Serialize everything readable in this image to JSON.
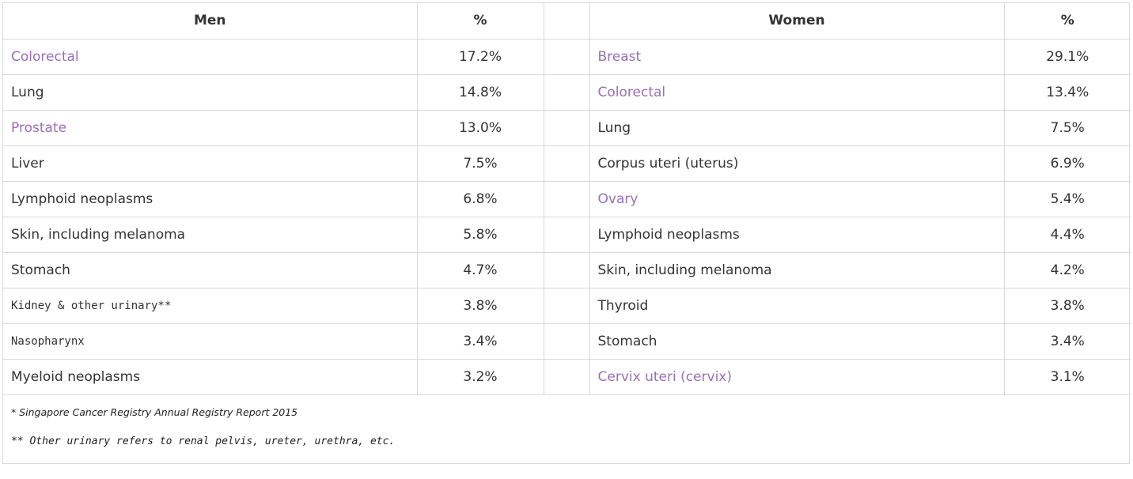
{
  "headers": {
    "men": "Men",
    "men_pct": "%",
    "women": "Women",
    "women_pct": "%"
  },
  "rows": [
    {
      "men": "Colorectal",
      "men_pct": "17.2%",
      "women": "Breast",
      "women_pct": "29.1%"
    },
    {
      "men": "Lung",
      "men_pct": "14.8%",
      "women": "Colorectal",
      "women_pct": "13.4%"
    },
    {
      "men": "Prostate",
      "men_pct": "13.0%",
      "women": "Lung",
      "women_pct": "7.5%"
    },
    {
      "men": "Liver",
      "men_pct": "7.5%",
      "women": "Corpus uteri (uterus)",
      "women_pct": "6.9%"
    },
    {
      "men": "Lymphoid neoplasms",
      "men_pct": "6.8%",
      "women": "Ovary",
      "women_pct": "5.4%"
    },
    {
      "men": "Skin, including melanoma",
      "men_pct": "5.8%",
      "women": "Lymphoid neoplasms",
      "women_pct": "4.4%"
    },
    {
      "men": "Stomach",
      "men_pct": "4.7%",
      "women": "Skin, including melanoma",
      "women_pct": "4.2%"
    },
    {
      "men": "Kidney & other urinary**",
      "men_pct": "3.8%",
      "women": "Thyroid",
      "women_pct": "3.8%"
    },
    {
      "men": "Nasopharynx",
      "men_pct": "3.4%",
      "women": "Stomach",
      "women_pct": "3.4%"
    },
    {
      "men": "Myeloid neoplasms",
      "men_pct": "3.2%",
      "women": "Cervix uteri (cervix)",
      "women_pct": "3.1%"
    }
  ],
  "footnotes": {
    "source": "* Singapore Cancer Registry Annual Registry Report 2015",
    "urinary": "** Other urinary refers to renal pelvis, ureter, urethra, etc."
  },
  "colors": {
    "link": "#9b6fb5",
    "text": "#333333",
    "border": "#d9d9d9"
  }
}
